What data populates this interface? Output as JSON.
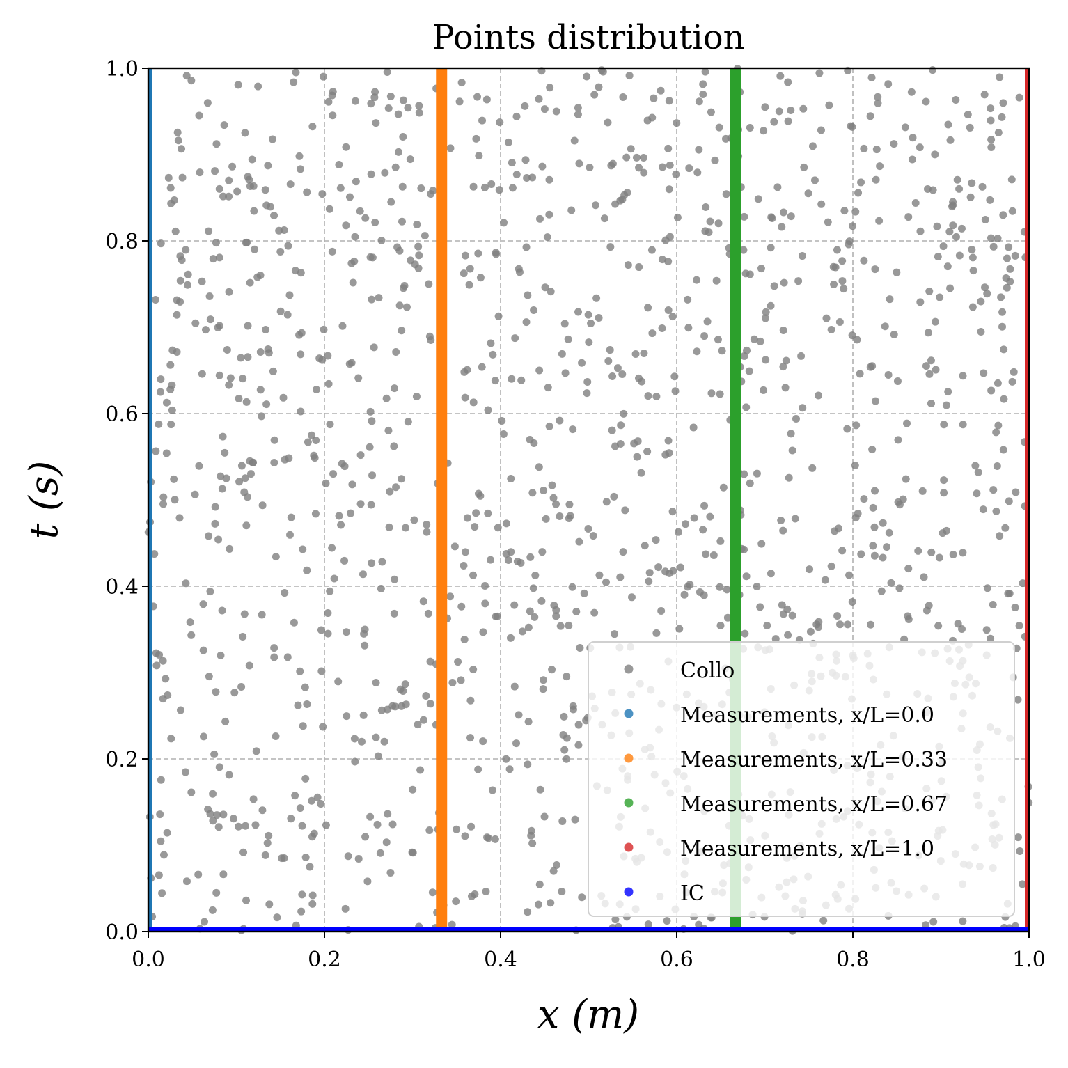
{
  "chart_data": {
    "type": "scatter",
    "title": "Points distribution",
    "xlabel": "x (m)",
    "ylabel": "t (s)",
    "xlim": [
      0.0,
      1.0
    ],
    "ylim": [
      0.0,
      1.0
    ],
    "x_ticks": [
      "0.0",
      "0.2",
      "0.4",
      "0.6",
      "0.8",
      "1.0"
    ],
    "y_ticks": [
      "0.0",
      "0.2",
      "0.4",
      "0.6",
      "0.8",
      "1.0"
    ],
    "grid": true,
    "legend_position": "lower-right",
    "series": [
      {
        "name": "Collo",
        "color": "#808080",
        "kind": "random-scatter",
        "x_range": [
          0.0,
          1.0
        ],
        "y_range": [
          0.0,
          1.0
        ],
        "count": 1400
      },
      {
        "name": "Measurements, x/L=0.0",
        "color": "#1f77b4",
        "kind": "vertical-line",
        "x": 0.0
      },
      {
        "name": "Measurements, x/L=0.33",
        "color": "#ff7f0e",
        "kind": "vertical-line",
        "x": 0.333
      },
      {
        "name": "Measurements, x/L=0.67",
        "color": "#2ca02c",
        "kind": "vertical-line",
        "x": 0.667
      },
      {
        "name": "Measurements, x/L=1.0",
        "color": "#d62728",
        "kind": "vertical-line",
        "x": 1.0
      },
      {
        "name": "IC",
        "color": "#0000ff",
        "kind": "horizontal-line",
        "y": 0.0
      }
    ]
  }
}
